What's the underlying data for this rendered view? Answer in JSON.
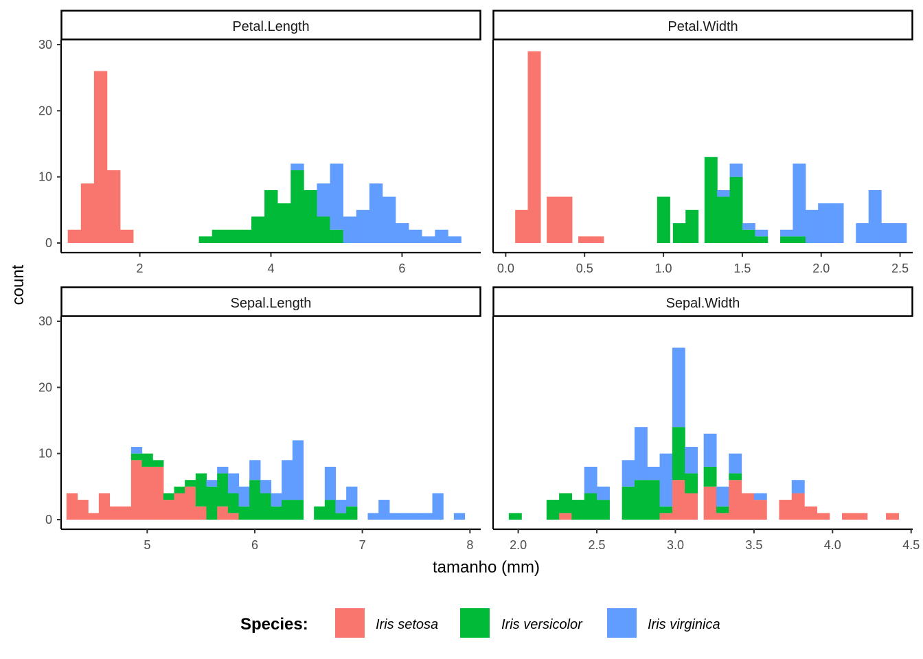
{
  "chart_data": {
    "type": "histogram",
    "stacked": true,
    "xlabel": "tamanho (mm)",
    "ylabel": "count",
    "ylim": [
      0,
      30
    ],
    "y_ticks": [
      0,
      10,
      20,
      30
    ],
    "legend": {
      "title": "Species:",
      "position": "bottom",
      "entries": [
        "Iris setosa",
        "Iris versicolor",
        "Iris virginica"
      ]
    },
    "colors": {
      "setosa": "#F8766D",
      "versicolor": "#00BA38",
      "virginica": "#619CFF"
    },
    "series_order": [
      "setosa",
      "versicolor",
      "virginica"
    ],
    "panels": [
      {
        "title": "Petal.Length",
        "binwidth": 0.197,
        "x_range": [
          0.8,
          7.2
        ],
        "x_ticks": [
          2,
          4,
          6
        ],
        "x_tick_labels": [
          "2",
          "4",
          "6"
        ],
        "bins": [
          {
            "x": 1.0,
            "setosa": 2,
            "versicolor": 0,
            "virginica": 0
          },
          {
            "x": 1.2,
            "setosa": 9,
            "versicolor": 0,
            "virginica": 0
          },
          {
            "x": 1.4,
            "setosa": 26,
            "versicolor": 0,
            "virginica": 0
          },
          {
            "x": 1.6,
            "setosa": 11,
            "versicolor": 0,
            "virginica": 0
          },
          {
            "x": 1.8,
            "setosa": 2,
            "versicolor": 0,
            "virginica": 0
          },
          {
            "x": 3.0,
            "setosa": 0,
            "versicolor": 1,
            "virginica": 0
          },
          {
            "x": 3.2,
            "setosa": 0,
            "versicolor": 2,
            "virginica": 0
          },
          {
            "x": 3.4,
            "setosa": 0,
            "versicolor": 2,
            "virginica": 0
          },
          {
            "x": 3.6,
            "setosa": 0,
            "versicolor": 2,
            "virginica": 0
          },
          {
            "x": 3.8,
            "setosa": 0,
            "versicolor": 4,
            "virginica": 0
          },
          {
            "x": 4.0,
            "setosa": 0,
            "versicolor": 8,
            "virginica": 0
          },
          {
            "x": 4.2,
            "setosa": 0,
            "versicolor": 6,
            "virginica": 0
          },
          {
            "x": 4.4,
            "setosa": 0,
            "versicolor": 11,
            "virginica": 1
          },
          {
            "x": 4.6,
            "setosa": 0,
            "versicolor": 8,
            "virginica": 0
          },
          {
            "x": 4.8,
            "setosa": 0,
            "versicolor": 4,
            "virginica": 5
          },
          {
            "x": 5.0,
            "setosa": 0,
            "versicolor": 2,
            "virginica": 10
          },
          {
            "x": 5.2,
            "setosa": 0,
            "versicolor": 0,
            "virginica": 4
          },
          {
            "x": 5.4,
            "setosa": 0,
            "versicolor": 0,
            "virginica": 5
          },
          {
            "x": 5.6,
            "setosa": 0,
            "versicolor": 0,
            "virginica": 9
          },
          {
            "x": 5.8,
            "setosa": 0,
            "versicolor": 0,
            "virginica": 7
          },
          {
            "x": 6.0,
            "setosa": 0,
            "versicolor": 0,
            "virginica": 3
          },
          {
            "x": 6.2,
            "setosa": 0,
            "versicolor": 0,
            "virginica": 2
          },
          {
            "x": 6.4,
            "setosa": 0,
            "versicolor": 0,
            "virginica": 1
          },
          {
            "x": 6.6,
            "setosa": 0,
            "versicolor": 0,
            "virginica": 2
          },
          {
            "x": 6.8,
            "setosa": 0,
            "versicolor": 0,
            "virginica": 1
          }
        ]
      },
      {
        "title": "Petal.Width",
        "binwidth": 0.08,
        "x_range": [
          -0.08,
          2.58
        ],
        "x_ticks": [
          0.0,
          0.5,
          1.0,
          1.5,
          2.0,
          2.5
        ],
        "x_tick_labels": [
          "0.0",
          "0.5",
          "1.0",
          "1.5",
          "2.0",
          "2.5"
        ],
        "bins": [
          {
            "x": 0.1,
            "setosa": 5,
            "versicolor": 0,
            "virginica": 0
          },
          {
            "x": 0.18,
            "setosa": 29,
            "versicolor": 0,
            "virginica": 0
          },
          {
            "x": 0.3,
            "setosa": 7,
            "versicolor": 0,
            "virginica": 0
          },
          {
            "x": 0.38,
            "setosa": 7,
            "versicolor": 0,
            "virginica": 0
          },
          {
            "x": 0.5,
            "setosa": 1,
            "versicolor": 0,
            "virginica": 0
          },
          {
            "x": 0.58,
            "setosa": 1,
            "versicolor": 0,
            "virginica": 0
          },
          {
            "x": 1.0,
            "setosa": 0,
            "versicolor": 7,
            "virginica": 0
          },
          {
            "x": 1.1,
            "setosa": 0,
            "versicolor": 3,
            "virginica": 0
          },
          {
            "x": 1.18,
            "setosa": 0,
            "versicolor": 5,
            "virginica": 0
          },
          {
            "x": 1.3,
            "setosa": 0,
            "versicolor": 13,
            "virginica": 0
          },
          {
            "x": 1.38,
            "setosa": 0,
            "versicolor": 7,
            "virginica": 1
          },
          {
            "x": 1.46,
            "setosa": 0,
            "versicolor": 10,
            "virginica": 2
          },
          {
            "x": 1.54,
            "setosa": 0,
            "versicolor": 2,
            "virginica": 1
          },
          {
            "x": 1.62,
            "setosa": 0,
            "versicolor": 1,
            "virginica": 1
          },
          {
            "x": 1.78,
            "setosa": 0,
            "versicolor": 1,
            "virginica": 1
          },
          {
            "x": 1.86,
            "setosa": 0,
            "versicolor": 1,
            "virginica": 11
          },
          {
            "x": 1.94,
            "setosa": 0,
            "versicolor": 0,
            "virginica": 5
          },
          {
            "x": 2.02,
            "setosa": 0,
            "versicolor": 0,
            "virginica": 6
          },
          {
            "x": 2.1,
            "setosa": 0,
            "versicolor": 0,
            "virginica": 6
          },
          {
            "x": 2.26,
            "setosa": 0,
            "versicolor": 0,
            "virginica": 3
          },
          {
            "x": 2.34,
            "setosa": 0,
            "versicolor": 0,
            "virginica": 8
          },
          {
            "x": 2.42,
            "setosa": 0,
            "versicolor": 0,
            "virginica": 3
          },
          {
            "x": 2.5,
            "setosa": 0,
            "versicolor": 0,
            "virginica": 3
          }
        ]
      },
      {
        "title": "Sepal.Length",
        "binwidth": 0.1,
        "x_range": [
          4.2,
          8.1
        ],
        "x_ticks": [
          5,
          6,
          7,
          8
        ],
        "x_tick_labels": [
          "5",
          "6",
          "7",
          "8"
        ],
        "bins": [
          {
            "x": 4.3,
            "setosa": 4,
            "versicolor": 0,
            "virginica": 0
          },
          {
            "x": 4.4,
            "setosa": 3,
            "versicolor": 0,
            "virginica": 0
          },
          {
            "x": 4.5,
            "setosa": 1,
            "versicolor": 0,
            "virginica": 0
          },
          {
            "x": 4.6,
            "setosa": 4,
            "versicolor": 0,
            "virginica": 0
          },
          {
            "x": 4.7,
            "setosa": 2,
            "versicolor": 0,
            "virginica": 0
          },
          {
            "x": 4.8,
            "setosa": 2,
            "versicolor": 0,
            "virginica": 0
          },
          {
            "x": 4.9,
            "setosa": 9,
            "versicolor": 1,
            "virginica": 1
          },
          {
            "x": 5.0,
            "setosa": 8,
            "versicolor": 2,
            "virginica": 0
          },
          {
            "x": 5.1,
            "setosa": 8,
            "versicolor": 1,
            "virginica": 0
          },
          {
            "x": 5.2,
            "setosa": 3,
            "versicolor": 1,
            "virginica": 0
          },
          {
            "x": 5.3,
            "setosa": 4,
            "versicolor": 1,
            "virginica": 0
          },
          {
            "x": 5.4,
            "setosa": 5,
            "versicolor": 1,
            "virginica": 0
          },
          {
            "x": 5.5,
            "setosa": 2,
            "versicolor": 5,
            "virginica": 0
          },
          {
            "x": 5.6,
            "setosa": 0,
            "versicolor": 5,
            "virginica": 1
          },
          {
            "x": 5.7,
            "setosa": 2,
            "versicolor": 5,
            "virginica": 1
          },
          {
            "x": 5.8,
            "setosa": 1,
            "versicolor": 3,
            "virginica": 3
          },
          {
            "x": 5.9,
            "setosa": 0,
            "versicolor": 2,
            "virginica": 3
          },
          {
            "x": 6.0,
            "setosa": 0,
            "versicolor": 6,
            "virginica": 3
          },
          {
            "x": 6.1,
            "setosa": 0,
            "versicolor": 4,
            "virginica": 2
          },
          {
            "x": 6.2,
            "setosa": 0,
            "versicolor": 2,
            "virginica": 2
          },
          {
            "x": 6.3,
            "setosa": 0,
            "versicolor": 3,
            "virginica": 6
          },
          {
            "x": 6.4,
            "setosa": 0,
            "versicolor": 3,
            "virginica": 9
          },
          {
            "x": 6.5,
            "setosa": 0,
            "versicolor": 0,
            "virginica": 0
          },
          {
            "x": 6.6,
            "setosa": 0,
            "versicolor": 2,
            "virginica": 0
          },
          {
            "x": 6.7,
            "setosa": 0,
            "versicolor": 3,
            "virginica": 5
          },
          {
            "x": 6.8,
            "setosa": 0,
            "versicolor": 1,
            "virginica": 2
          },
          {
            "x": 6.9,
            "setosa": 0,
            "versicolor": 2,
            "virginica": 3
          },
          {
            "x": 7.0,
            "setosa": 0,
            "versicolor": 0,
            "virginica": 0
          },
          {
            "x": 7.1,
            "setosa": 0,
            "versicolor": 0,
            "virginica": 1
          },
          {
            "x": 7.2,
            "setosa": 0,
            "versicolor": 0,
            "virginica": 3
          },
          {
            "x": 7.3,
            "setosa": 0,
            "versicolor": 0,
            "virginica": 1
          },
          {
            "x": 7.4,
            "setosa": 0,
            "versicolor": 0,
            "virginica": 1
          },
          {
            "x": 7.5,
            "setosa": 0,
            "versicolor": 0,
            "virginica": 1
          },
          {
            "x": 7.6,
            "setosa": 0,
            "versicolor": 0,
            "virginica": 1
          },
          {
            "x": 7.7,
            "setosa": 0,
            "versicolor": 0,
            "virginica": 4
          },
          {
            "x": 7.9,
            "setosa": 0,
            "versicolor": 0,
            "virginica": 1
          }
        ]
      },
      {
        "title": "Sepal.Width",
        "binwidth": 0.08,
        "x_range": [
          1.84,
          4.51
        ],
        "x_ticks": [
          2.0,
          2.5,
          3.0,
          3.5,
          4.0,
          4.5
        ],
        "x_tick_labels": [
          "2.0",
          "2.5",
          "3.0",
          "3.5",
          "4.0",
          "4.5"
        ],
        "bins": [
          {
            "x": 1.98,
            "setosa": 0,
            "versicolor": 1,
            "virginica": 0
          },
          {
            "x": 2.22,
            "setosa": 0,
            "versicolor": 3,
            "virginica": 0
          },
          {
            "x": 2.3,
            "setosa": 1,
            "versicolor": 3,
            "virginica": 0
          },
          {
            "x": 2.38,
            "setosa": 0,
            "versicolor": 3,
            "virginica": 0
          },
          {
            "x": 2.46,
            "setosa": 0,
            "versicolor": 4,
            "virginica": 4
          },
          {
            "x": 2.54,
            "setosa": 0,
            "versicolor": 3,
            "virginica": 2
          },
          {
            "x": 2.7,
            "setosa": 0,
            "versicolor": 5,
            "virginica": 4
          },
          {
            "x": 2.78,
            "setosa": 0,
            "versicolor": 6,
            "virginica": 8
          },
          {
            "x": 2.86,
            "setosa": 0,
            "versicolor": 6,
            "virginica": 2
          },
          {
            "x": 2.94,
            "setosa": 1,
            "versicolor": 1,
            "virginica": 8
          },
          {
            "x": 3.02,
            "setosa": 6,
            "versicolor": 8,
            "virginica": 12
          },
          {
            "x": 3.1,
            "setosa": 4,
            "versicolor": 3,
            "virginica": 4
          },
          {
            "x": 3.22,
            "setosa": 5,
            "versicolor": 3,
            "virginica": 5
          },
          {
            "x": 3.3,
            "setosa": 1,
            "versicolor": 1,
            "virginica": 3
          },
          {
            "x": 3.38,
            "setosa": 6,
            "versicolor": 1,
            "virginica": 3
          },
          {
            "x": 3.46,
            "setosa": 4,
            "versicolor": 0,
            "virginica": 0
          },
          {
            "x": 3.54,
            "setosa": 3,
            "versicolor": 0,
            "virginica": 1
          },
          {
            "x": 3.7,
            "setosa": 3,
            "versicolor": 0,
            "virginica": 0
          },
          {
            "x": 3.78,
            "setosa": 4,
            "versicolor": 0,
            "virginica": 2
          },
          {
            "x": 3.86,
            "setosa": 2,
            "versicolor": 0,
            "virginica": 0
          },
          {
            "x": 3.94,
            "setosa": 1,
            "versicolor": 0,
            "virginica": 0
          },
          {
            "x": 4.1,
            "setosa": 1,
            "versicolor": 0,
            "virginica": 0
          },
          {
            "x": 4.18,
            "setosa": 1,
            "versicolor": 0,
            "virginica": 0
          },
          {
            "x": 4.38,
            "setosa": 1,
            "versicolor": 0,
            "virginica": 0
          }
        ]
      }
    ]
  }
}
